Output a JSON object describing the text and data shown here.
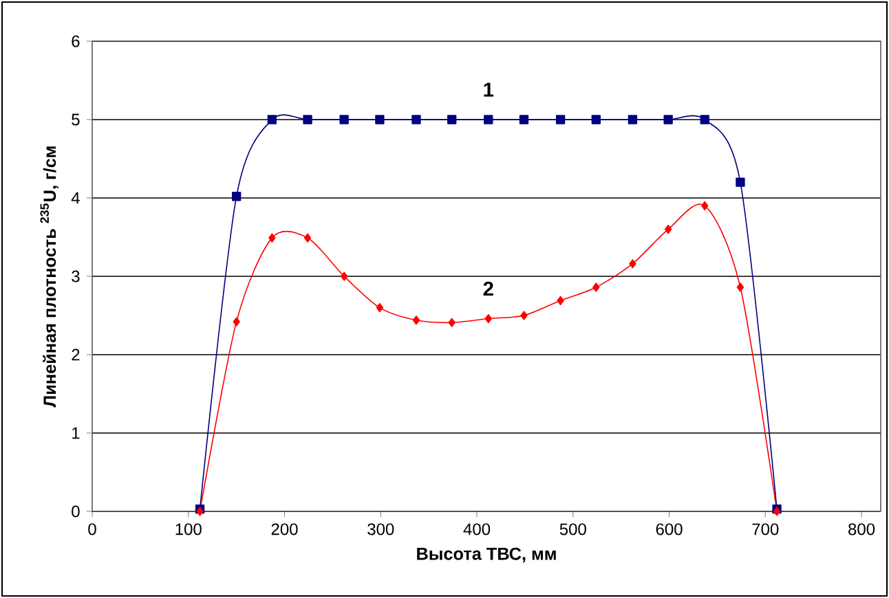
{
  "chart_data": {
    "type": "line",
    "xlabel": "Высота ТВС, мм",
    "ylabel": "Линейная плотность $^{235}$U, г/см",
    "x": [
      112,
      150,
      187,
      224,
      262,
      299,
      337,
      374,
      412,
      449,
      487,
      524,
      562,
      599,
      637,
      674,
      712
    ],
    "series": [
      {
        "name": "1",
        "color": "#000080",
        "marker": "square",
        "values": [
          0.03,
          4.02,
          5,
          5,
          5,
          5,
          5,
          5,
          5,
          5,
          5,
          5,
          5,
          5,
          5,
          4.2,
          0.03
        ]
      },
      {
        "name": "2",
        "color": "#ff0000",
        "marker": "diamond",
        "values": [
          0,
          2.42,
          3.49,
          3.49,
          3.0,
          2.6,
          2.44,
          2.41,
          2.46,
          2.5,
          2.69,
          2.86,
          3.16,
          3.6,
          3.9,
          2.86,
          0
        ]
      }
    ],
    "xlim": [
      0,
      820
    ],
    "ylim": [
      0,
      6
    ],
    "xticks": [
      0,
      100,
      200,
      300,
      400,
      500,
      600,
      700,
      800
    ],
    "yticks": [
      0,
      1,
      2,
      3,
      4,
      5,
      6
    ],
    "grid": "y",
    "legend": false,
    "line_style": "solid"
  }
}
